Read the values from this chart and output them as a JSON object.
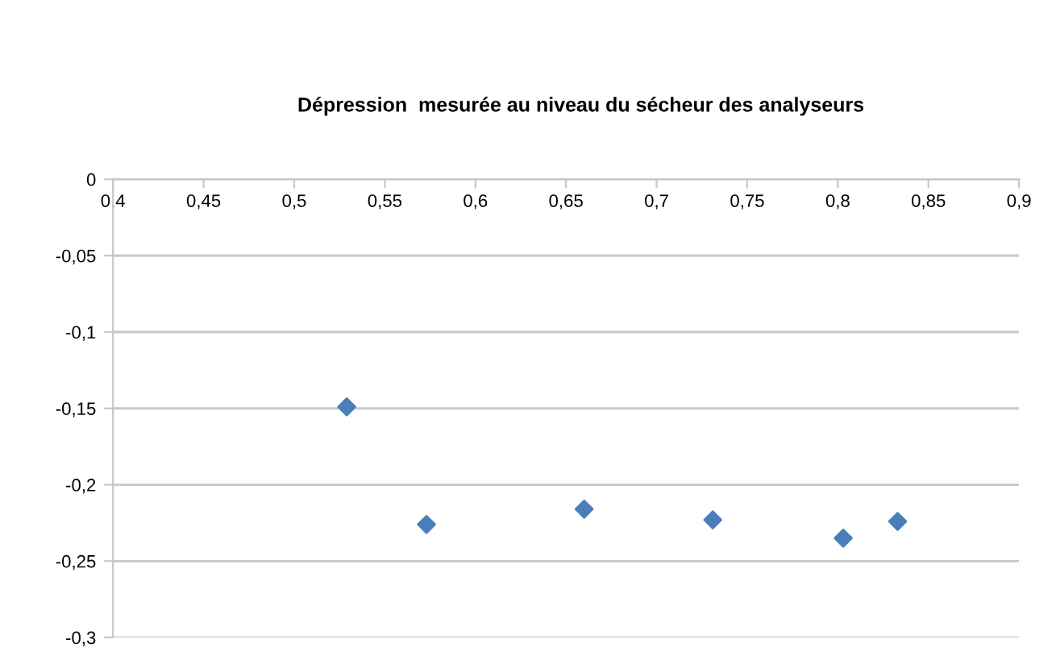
{
  "chart_data": {
    "type": "scatter",
    "title": "Dépression  mesurée au niveau du sécheur des analyseurs",
    "x": [
      0.529,
      0.573,
      0.66,
      0.731,
      0.803,
      0.833
    ],
    "series": [
      {
        "color": "#4a7ebb",
        "values": [
          -0.149,
          -0.226,
          -0.216,
          -0.223,
          -0.235,
          -0.224
        ]
      }
    ],
    "xlim": [
      0.4,
      0.9
    ],
    "xticks": [
      {
        "value": 0.4,
        "label": "0,4"
      },
      {
        "value": 0.45,
        "label": "0,45"
      },
      {
        "value": 0.5,
        "label": "0,5"
      },
      {
        "value": 0.55,
        "label": "0,55"
      },
      {
        "value": 0.6,
        "label": "0,6"
      },
      {
        "value": 0.65,
        "label": "0,65"
      },
      {
        "value": 0.7,
        "label": "0,7"
      },
      {
        "value": 0.75,
        "label": "0,75"
      },
      {
        "value": 0.8,
        "label": "0,8"
      },
      {
        "value": 0.85,
        "label": "0,85"
      },
      {
        "value": 0.9,
        "label": "0,9"
      }
    ],
    "ylim": [
      -0.3,
      0
    ],
    "yticks": [
      {
        "value": 0,
        "label": "0"
      },
      {
        "value": -0.05,
        "label": "-0,05"
      },
      {
        "value": -0.1,
        "label": "-0,1"
      },
      {
        "value": -0.15,
        "label": "-0,15"
      },
      {
        "value": -0.2,
        "label": "-0,2"
      },
      {
        "value": -0.25,
        "label": "-0,25"
      },
      {
        "value": -0.3,
        "label": "-0,3"
      }
    ],
    "grid": "y",
    "marker": "diamond"
  }
}
